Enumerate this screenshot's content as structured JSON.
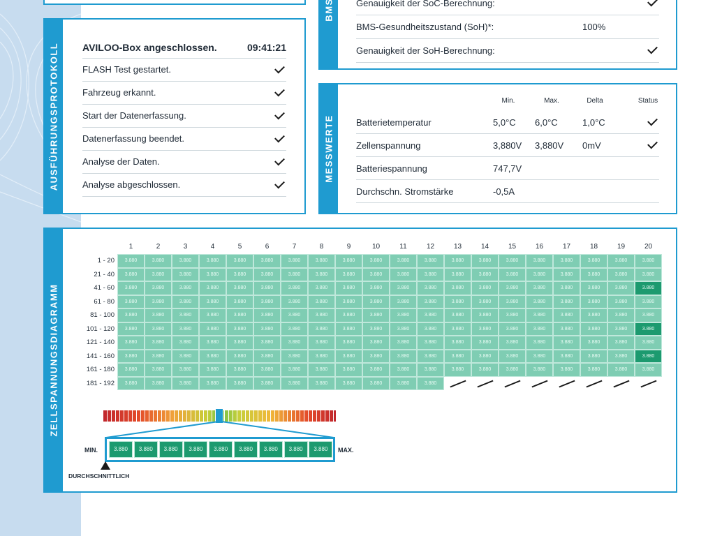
{
  "colors": {
    "accent": "#1f9bd0",
    "cell": "#7fcdb3",
    "cell_highlight": "#1c9a6f"
  },
  "ausfuehrungsprotokoll": {
    "tab_label": "AUSFÜHRUNGSPROTOKOLL",
    "header": {
      "text": "AVILOO-Box angeschlossen.",
      "time": "09:41:21"
    },
    "rows": [
      {
        "text": "FLASH Test gestartet."
      },
      {
        "text": "Fahrzeug erkannt."
      },
      {
        "text": "Start der Datenerfassung."
      },
      {
        "text": "Datenerfassung beendet."
      },
      {
        "text": "Analyse der Daten."
      },
      {
        "text": "Analyse abgeschlossen."
      }
    ]
  },
  "bms": {
    "tab_label": "BMS",
    "rows": [
      {
        "label": "Genauigkeit der SoC-Berechnung:",
        "value": ""
      },
      {
        "label": "BMS-Gesundheitszustand (SoH)*:",
        "value": "100%"
      },
      {
        "label": "Genauigkeit der SoH-Berechnung:",
        "value": ""
      }
    ]
  },
  "messwerte": {
    "tab_label": "MESSWERTE",
    "headers": {
      "min": "Min.",
      "max": "Max.",
      "delta": "Delta",
      "status": "Status"
    },
    "rows": [
      {
        "label": "Batterietemperatur",
        "min": "5,0°C",
        "max": "6,0°C",
        "delta": "1,0°C",
        "check": true
      },
      {
        "label": "Zellenspannung",
        "min": "3,880V",
        "max": "3,880V",
        "delta": "0mV",
        "check": true
      },
      {
        "label": "Batteriespannung",
        "min": "747,7V",
        "max": "",
        "delta": "",
        "check": false
      },
      {
        "label": "Durchschn. Stromstärke",
        "min": "-0,5A",
        "max": "",
        "delta": "",
        "check": false
      }
    ]
  },
  "zellspannung": {
    "tab_label": "ZELLSPANNUNGSDIAGRAMM",
    "columns": [
      "1",
      "2",
      "3",
      "4",
      "5",
      "6",
      "7",
      "8",
      "9",
      "10",
      "11",
      "12",
      "13",
      "14",
      "15",
      "16",
      "17",
      "18",
      "19",
      "20"
    ],
    "rows": [
      "1 - 20",
      "21 - 40",
      "41 - 60",
      "61 - 80",
      "81 - 100",
      "101 - 120",
      "121 - 140",
      "141 - 160",
      "161 - 180",
      "181 - 192"
    ],
    "cell_value": "3.880",
    "total_cells": 192,
    "highlighted_cells": [
      60,
      120,
      160
    ],
    "legend": {
      "min_label": "MIN.",
      "max_label": "MAX.",
      "avg_label": "DURCHSCHNITTLICH",
      "zoom_values": [
        "3.880",
        "3.880",
        "3.880",
        "3.880",
        "3.880",
        "3.880",
        "3.880",
        "3.880",
        "3.880"
      ]
    }
  }
}
